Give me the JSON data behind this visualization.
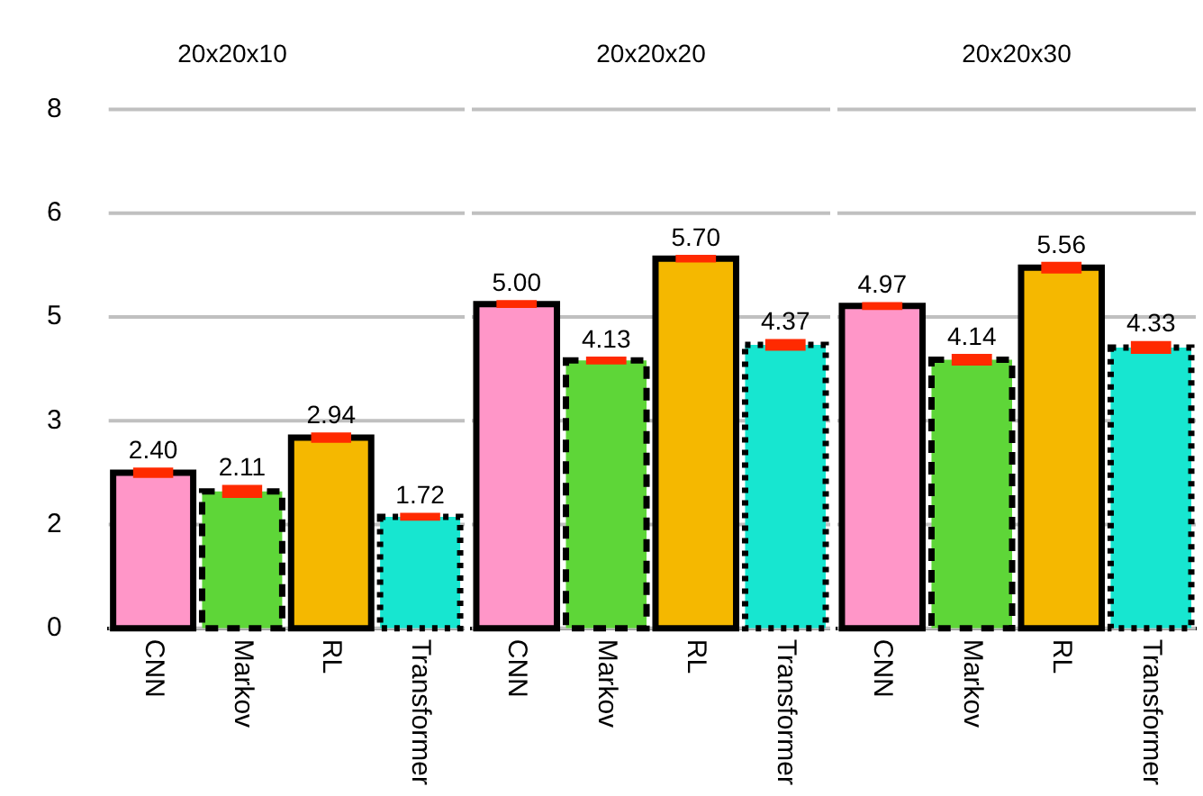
{
  "chart_data": [
    {
      "type": "bar",
      "title": "20x20x10",
      "categories": [
        "CNN",
        "Markov",
        "RL",
        "Transformer"
      ],
      "stacked": true,
      "grid": "y",
      "legend": false,
      "ylim": [
        0,
        8
      ],
      "yticks": [
        0,
        {
          "value": 1.6,
          "label": "2"
        },
        {
          "value": 3.2,
          "label": "3"
        },
        {
          "value": 4.8,
          "label": "5"
        },
        {
          "value": 6.4,
          "label": "6"
        },
        {
          "value": 8,
          "label": "8"
        }
      ],
      "series": [
        {
          "color": "#ff96c8",
          "line_style": "solid",
          "values": [
            2.4,
            null,
            null,
            null
          ],
          "errors": [
            0.08,
            null,
            null,
            null
          ],
          "value_labels": [
            "2.40",
            null,
            null,
            null
          ]
        },
        {
          "color": "#5ed638",
          "line_style": "dashed",
          "values": [
            null,
            2.11,
            null,
            null
          ],
          "errors": [
            null,
            0.1,
            null,
            null
          ],
          "value_labels": [
            null,
            "2.11",
            null,
            null
          ]
        },
        {
          "color": "#f5b800",
          "line_style": "solid",
          "values": [
            null,
            null,
            2.94,
            null
          ],
          "errors": [
            null,
            null,
            0.08,
            null
          ],
          "value_labels": [
            null,
            null,
            "2.94",
            null
          ]
        },
        {
          "color": "#17e6d0",
          "line_style": "dotted",
          "values": [
            null,
            null,
            null,
            1.72
          ],
          "errors": [
            null,
            null,
            null,
            0.06
          ],
          "value_labels": [
            null,
            null,
            null,
            "1.72"
          ]
        }
      ]
    },
    {
      "type": "bar",
      "title": "20x20x20",
      "categories": [
        "CNN",
        "Markov",
        "RL",
        "Transformer"
      ],
      "stacked": true,
      "grid": "y",
      "legend": false,
      "tick_labels": "x",
      "ylim": [
        0,
        8
      ],
      "yticks": [
        {
          "value": 0,
          "label": null
        },
        {
          "value": 1.6,
          "label": null
        },
        {
          "value": 3.2,
          "label": null
        },
        {
          "value": 4.8,
          "label": null
        },
        {
          "value": 6.4,
          "label": null
        },
        {
          "value": 8,
          "label": null
        }
      ],
      "series": [
        {
          "color": "#ff96c8",
          "line_style": "solid",
          "values": [
            5.0,
            null,
            null,
            null
          ],
          "errors": [
            0.06,
            null,
            null,
            null
          ],
          "value_labels": [
            "5.00",
            null,
            null,
            null
          ]
        },
        {
          "color": "#5ed638",
          "line_style": "dashed",
          "values": [
            null,
            4.13,
            null,
            null
          ],
          "errors": [
            null,
            0.06,
            null,
            null
          ],
          "value_labels": [
            null,
            "4.13",
            null,
            null
          ]
        },
        {
          "color": "#f5b800",
          "line_style": "solid",
          "values": [
            null,
            null,
            5.7,
            null
          ],
          "errors": [
            null,
            null,
            0.06,
            null
          ],
          "value_labels": [
            null,
            null,
            "5.70",
            null
          ]
        },
        {
          "color": "#17e6d0",
          "line_style": "dotted",
          "values": [
            null,
            null,
            null,
            4.37
          ],
          "errors": [
            null,
            null,
            null,
            0.09
          ],
          "value_labels": [
            null,
            null,
            null,
            "4.37"
          ]
        }
      ]
    },
    {
      "type": "bar",
      "title": "20x20x30",
      "categories": [
        "CNN",
        "Markov",
        "RL",
        "Transformer"
      ],
      "stacked": true,
      "grid": "y",
      "legend": false,
      "tick_labels": "x",
      "ylim": [
        0,
        8
      ],
      "yticks": [
        {
          "value": 0,
          "label": null
        },
        {
          "value": 1.6,
          "label": null
        },
        {
          "value": 3.2,
          "label": null
        },
        {
          "value": 4.8,
          "label": null
        },
        {
          "value": 6.4,
          "label": null
        },
        {
          "value": 8,
          "label": null
        }
      ],
      "series": [
        {
          "color": "#ff96c8",
          "line_style": "solid",
          "values": [
            4.97,
            null,
            null,
            null
          ],
          "errors": [
            0.06,
            null,
            null,
            null
          ],
          "value_labels": [
            "4.97",
            null,
            null,
            null
          ]
        },
        {
          "color": "#5ed638",
          "line_style": "dashed",
          "values": [
            null,
            4.14,
            null,
            null
          ],
          "errors": [
            null,
            0.09,
            null,
            null
          ],
          "value_labels": [
            null,
            "4.14",
            null,
            null
          ]
        },
        {
          "color": "#f5b800",
          "line_style": "solid",
          "values": [
            null,
            null,
            5.56,
            null
          ],
          "errors": [
            null,
            null,
            0.09,
            null
          ],
          "value_labels": [
            null,
            null,
            "5.56",
            null
          ]
        },
        {
          "color": "#17e6d0",
          "line_style": "dotted",
          "values": [
            null,
            null,
            null,
            4.33
          ],
          "errors": [
            null,
            null,
            null,
            0.1
          ],
          "value_labels": [
            null,
            null,
            null,
            "4.33"
          ]
        }
      ]
    }
  ]
}
